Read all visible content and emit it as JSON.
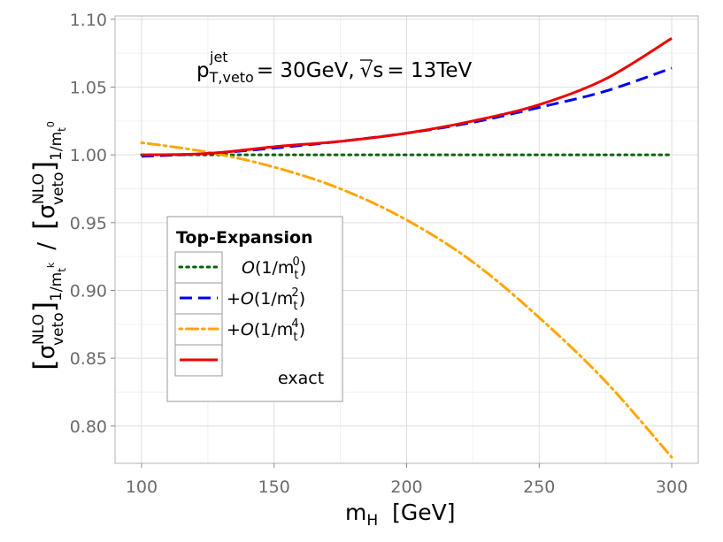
{
  "chart_data": {
    "type": "line",
    "annotation": {
      "p_main": "p",
      "p_sup": "jet",
      "p_sub": "T,veto",
      "eq1": "= 30GeV,",
      "sqrt_s": "s",
      "eq2": "= 13TeV"
    },
    "xlabel": {
      "main": "m",
      "sub": "H",
      "unit": "[GeV]"
    },
    "ylabel": {
      "sigma": "σ",
      "sup": "NLO",
      "sub": "veto",
      "num_order": "1/m",
      "num_order_sub": "t",
      "num_order_sup": "k",
      "slash": "/",
      "den_order": "1/m",
      "den_order_sub": "t",
      "den_order_sup": "0"
    },
    "xlim": [
      90,
      310
    ],
    "ylim": [
      0.7725,
      1.1025
    ],
    "xticks": [
      100,
      150,
      200,
      250,
      300
    ],
    "xtick_labels": [
      "100",
      "150",
      "200",
      "250",
      "300"
    ],
    "yticks": [
      0.8,
      0.85,
      0.9,
      0.95,
      1.0,
      1.05,
      1.1
    ],
    "ytick_labels": [
      "0.80",
      "0.85",
      "0.90",
      "0.95",
      "1.00",
      "1.05",
      "1.10"
    ],
    "legend": {
      "title": "Top-Expansion",
      "placement": "center-left",
      "entries": [
        {
          "key": "O0",
          "prefix": "",
          "O": "O",
          "frac": "(1/m",
          "sub": "t",
          "sup": "0",
          "close": ")"
        },
        {
          "key": "O2",
          "prefix": "+",
          "O": "O",
          "frac": "(1/m",
          "sub": "t",
          "sup": "2",
          "close": ")"
        },
        {
          "key": "O4",
          "prefix": "+",
          "O": "O",
          "frac": "(1/m",
          "sub": "t",
          "sup": "4",
          "close": ")"
        },
        {
          "key": "exact",
          "label": "exact"
        }
      ]
    },
    "series": [
      {
        "name": "O(1/m_t^0)",
        "color": "#006400",
        "dash": "dotted",
        "x": [
          100,
          300
        ],
        "y": [
          1.0,
          1.0
        ]
      },
      {
        "name": "+O(1/m_t^2)",
        "color": "#0000ee",
        "dash": "dashed",
        "x": [
          100,
          125,
          150,
          175,
          200,
          225,
          250,
          275,
          300
        ],
        "y": [
          0.999,
          1.001,
          1.005,
          1.01,
          1.016,
          1.024,
          1.035,
          1.047,
          1.064
        ]
      },
      {
        "name": "+O(1/m_t^4)",
        "color": "#ffa500",
        "dash": "dotdash",
        "x": [
          100,
          125,
          150,
          175,
          200,
          225,
          250,
          275,
          300
        ],
        "y": [
          1.009,
          1.002,
          0.991,
          0.975,
          0.952,
          0.921,
          0.88,
          0.833,
          0.777
        ]
      },
      {
        "name": "exact",
        "color": "#ee0000",
        "dash": "solid",
        "x": [
          100,
          125,
          150,
          175,
          200,
          225,
          250,
          275,
          300
        ],
        "y": [
          1.0,
          1.001,
          1.006,
          1.01,
          1.016,
          1.025,
          1.037,
          1.056,
          1.086
        ]
      }
    ]
  }
}
